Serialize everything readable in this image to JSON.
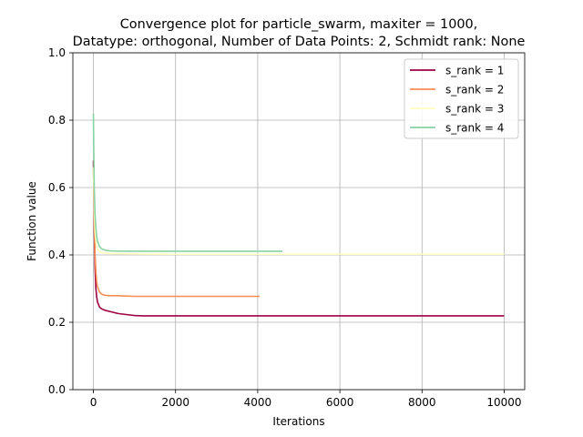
{
  "chart_data": {
    "type": "line",
    "title_line1": "Convergence plot for particle_swarm, maxiter = 1000,",
    "title_line2": "Datatype: orthogonal, Number of Data Points: 2, Schmidt rank: None",
    "xlabel": "Iterations",
    "ylabel": "Function value",
    "xlim": [
      -500,
      10500
    ],
    "ylim": [
      0.0,
      1.0
    ],
    "xticks": [
      0,
      2000,
      4000,
      6000,
      8000,
      10000
    ],
    "xtick_labels": [
      "0",
      "2000",
      "4000",
      "6000",
      "8000",
      "10000"
    ],
    "yticks": [
      0.0,
      0.2,
      0.4,
      0.6,
      0.8,
      1.0
    ],
    "ytick_labels": [
      "0.0",
      "0.2",
      "0.4",
      "0.6",
      "0.8",
      "1.0"
    ],
    "grid": true,
    "legend_position": "top-right",
    "series": [
      {
        "name": "s_rank = 1",
        "color": "#9e0142",
        "x": [
          0,
          10,
          20,
          40,
          60,
          80,
          100,
          150,
          200,
          250,
          300,
          400,
          500,
          600,
          800,
          1000,
          1200,
          2000,
          3000,
          5000,
          7000,
          10000
        ],
        "y": [
          0.68,
          0.58,
          0.48,
          0.36,
          0.3,
          0.275,
          0.26,
          0.245,
          0.24,
          0.237,
          0.235,
          0.232,
          0.229,
          0.226,
          0.223,
          0.22,
          0.219,
          0.219,
          0.219,
          0.219,
          0.219,
          0.219
        ]
      },
      {
        "name": "s_rank = 2",
        "color": "#f98e52",
        "x": [
          0,
          10,
          20,
          40,
          60,
          80,
          100,
          150,
          200,
          250,
          300,
          400,
          600,
          800,
          1000,
          1500,
          2000,
          3000,
          4050
        ],
        "y": [
          0.66,
          0.58,
          0.5,
          0.4,
          0.35,
          0.32,
          0.305,
          0.29,
          0.284,
          0.281,
          0.28,
          0.279,
          0.279,
          0.278,
          0.277,
          0.277,
          0.277,
          0.277,
          0.277
        ]
      },
      {
        "name": "s_rank = 3",
        "color": "#ffffbe",
        "x": [
          0,
          10,
          20,
          40,
          60,
          80,
          100,
          150,
          200,
          300,
          500,
          1000,
          2000,
          4000,
          6000,
          8000,
          10000
        ],
        "y": [
          0.66,
          0.6,
          0.54,
          0.47,
          0.44,
          0.425,
          0.417,
          0.41,
          0.407,
          0.405,
          0.404,
          0.403,
          0.402,
          0.402,
          0.402,
          0.402,
          0.402
        ]
      },
      {
        "name": "s_rank = 4",
        "color": "#89d3a4",
        "x": [
          0,
          10,
          20,
          40,
          60,
          80,
          100,
          150,
          200,
          300,
          400,
          600,
          1000,
          2000,
          3000,
          4600
        ],
        "y": [
          0.82,
          0.7,
          0.6,
          0.52,
          0.48,
          0.455,
          0.44,
          0.425,
          0.418,
          0.414,
          0.412,
          0.411,
          0.411,
          0.411,
          0.411,
          0.411
        ]
      }
    ]
  }
}
